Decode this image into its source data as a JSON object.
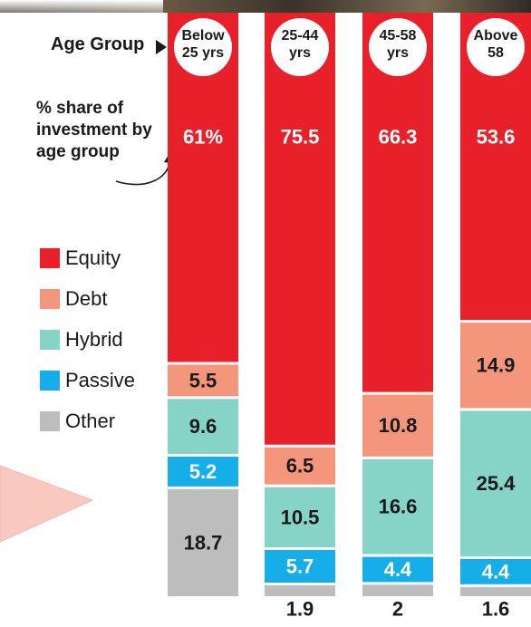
{
  "axis_label": "Age Group",
  "note": "% share of investment by age group",
  "legend": [
    {
      "name": "Equity",
      "color": "#e8202a"
    },
    {
      "name": "Debt",
      "color": "#f4967c"
    },
    {
      "name": "Hybrid",
      "color": "#86d4c8"
    },
    {
      "name": "Passive",
      "color": "#16aee8"
    },
    {
      "name": "Other",
      "color": "#bdbdbd"
    }
  ],
  "chart_data": {
    "type": "bar",
    "stacked": true,
    "orientation": "vertical",
    "categories": [
      "Below 25 yrs",
      "25-44 yrs",
      "45-58 yrs",
      "Above 58"
    ],
    "category_lines": [
      [
        "Below",
        "25 yrs"
      ],
      [
        "25-44",
        "yrs"
      ],
      [
        "45-58",
        "yrs"
      ],
      [
        "Above",
        "58"
      ]
    ],
    "series": [
      {
        "name": "Equity",
        "values": [
          61,
          75.5,
          66.3,
          53.6
        ],
        "labels": [
          "61%",
          "75.5",
          "66.3",
          "53.6"
        ],
        "color": "#e8202a"
      },
      {
        "name": "Debt",
        "values": [
          5.5,
          6.5,
          10.8,
          14.9
        ],
        "labels": [
          "5.5",
          "6.5",
          "10.8",
          "14.9"
        ],
        "color": "#f4967c"
      },
      {
        "name": "Hybrid",
        "values": [
          9.6,
          10.5,
          16.6,
          25.4
        ],
        "labels": [
          "9.6",
          "10.5",
          "16.6",
          "25.4"
        ],
        "color": "#86d4c8"
      },
      {
        "name": "Passive",
        "values": [
          5.2,
          5.7,
          4.4,
          4.4
        ],
        "labels": [
          "5.2",
          "5.7",
          "4.4",
          "4.4"
        ],
        "color": "#16aee8"
      },
      {
        "name": "Other",
        "values": [
          18.7,
          1.9,
          2,
          1.6
        ],
        "labels": [
          "18.7",
          "1.9",
          "2",
          "1.6"
        ],
        "color": "#bdbdbd"
      }
    ],
    "ylim": [
      0,
      100
    ],
    "grid": false,
    "legend_position": "left"
  }
}
